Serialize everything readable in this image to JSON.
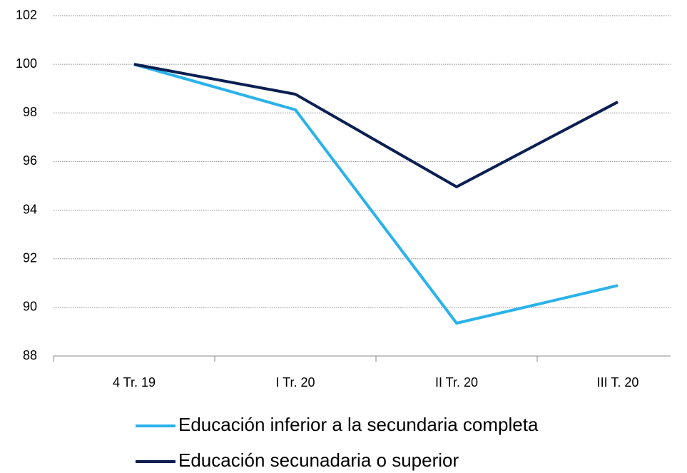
{
  "chart_data": {
    "type": "line",
    "categories": [
      "4 Tr. 19",
      "I Tr. 20",
      "II Tr. 20",
      "III T. 20"
    ],
    "series": [
      {
        "name": "Educación inferior a la secundaria completa",
        "color": "#2ab2ea",
        "values": [
          100,
          98.13,
          89.35,
          90.9
        ]
      },
      {
        "name": "Educación secunadaria o superior",
        "color": "#0b1f52",
        "values": [
          100,
          98.77,
          94.96,
          98.45
        ]
      }
    ],
    "ylim": [
      88,
      102
    ],
    "yticks": [
      88,
      90,
      92,
      94,
      96,
      98,
      100,
      102
    ],
    "grid": true,
    "legend": "bottom"
  }
}
